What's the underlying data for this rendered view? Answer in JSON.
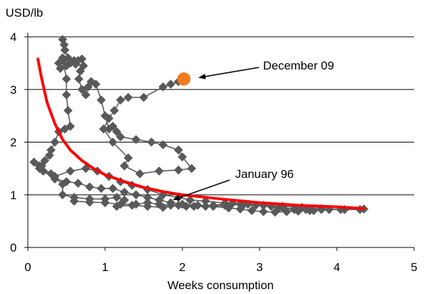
{
  "chart_data": {
    "type": "scatter",
    "title": "",
    "ylabel": "USD/lb",
    "xlabel": "Weeks consumption",
    "xlim": [
      0,
      5
    ],
    "ylim": [
      0,
      4
    ],
    "x_ticks": [
      "0",
      "1",
      "2",
      "3",
      "4",
      "5"
    ],
    "y_ticks": [
      "0",
      "1",
      "2",
      "3",
      "4"
    ],
    "grid": "horizontal",
    "series": [
      {
        "kind": "connected-scatter",
        "color": "#595959",
        "points": [
          [
            0.45,
            3.95
          ],
          [
            0.47,
            3.85
          ],
          [
            0.48,
            3.75
          ],
          [
            0.52,
            3.6
          ],
          [
            0.45,
            3.55
          ],
          [
            0.4,
            3.5
          ],
          [
            0.42,
            3.4
          ],
          [
            0.5,
            3.45
          ],
          [
            0.55,
            3.5
          ],
          [
            0.6,
            3.55
          ],
          [
            0.62,
            3.48
          ],
          [
            0.65,
            3.55
          ],
          [
            0.7,
            3.58
          ],
          [
            0.72,
            3.45
          ],
          [
            0.68,
            3.35
          ],
          [
            0.66,
            3.2
          ],
          [
            0.7,
            3.0
          ],
          [
            0.75,
            2.9
          ],
          [
            0.78,
            3.05
          ],
          [
            0.82,
            3.15
          ],
          [
            0.88,
            3.1
          ],
          [
            0.95,
            2.8
          ],
          [
            1.0,
            2.5
          ],
          [
            1.05,
            2.25
          ],
          [
            1.1,
            2.3
          ],
          [
            1.15,
            2.2
          ],
          [
            1.2,
            2.1
          ],
          [
            1.4,
            2.05
          ],
          [
            1.6,
            2.0
          ],
          [
            1.75,
            1.95
          ],
          [
            1.95,
            1.85
          ],
          [
            2.0,
            1.72
          ],
          [
            2.12,
            1.5
          ],
          [
            1.95,
            1.47
          ],
          [
            1.7,
            1.45
          ],
          [
            1.45,
            1.4
          ],
          [
            1.25,
            1.55
          ],
          [
            1.3,
            1.7
          ],
          [
            1.1,
            2.0
          ],
          [
            0.98,
            2.25
          ],
          [
            1.05,
            2.45
          ],
          [
            1.12,
            2.6
          ],
          [
            1.2,
            2.8
          ],
          [
            1.3,
            2.85
          ],
          [
            1.5,
            2.85
          ],
          [
            1.75,
            3.05
          ],
          [
            1.85,
            3.1
          ],
          [
            1.95,
            3.15
          ]
        ]
      },
      {
        "kind": "connected-scatter",
        "color": "#595959",
        "points": [
          [
            0.45,
            3.6
          ],
          [
            0.5,
            3.2
          ],
          [
            0.5,
            2.9
          ],
          [
            0.52,
            2.6
          ],
          [
            0.55,
            2.3
          ],
          [
            0.48,
            2.25
          ],
          [
            0.4,
            2.2
          ],
          [
            0.35,
            2.0
          ],
          [
            0.3,
            1.85
          ],
          [
            0.28,
            1.75
          ],
          [
            0.22,
            1.65
          ],
          [
            0.18,
            1.55
          ],
          [
            0.15,
            1.5
          ],
          [
            0.2,
            1.45
          ],
          [
            0.35,
            1.35
          ],
          [
            0.55,
            1.45
          ],
          [
            0.75,
            1.5
          ],
          [
            0.9,
            1.45
          ],
          [
            1.05,
            1.35
          ],
          [
            1.2,
            1.25
          ],
          [
            1.35,
            1.18
          ],
          [
            1.55,
            1.1
          ],
          [
            1.75,
            1.0
          ],
          [
            1.95,
            0.95
          ],
          [
            2.1,
            0.9
          ],
          [
            2.3,
            0.88
          ],
          [
            2.55,
            0.84
          ],
          [
            2.8,
            0.82
          ],
          [
            3.05,
            0.8
          ],
          [
            3.3,
            0.78
          ],
          [
            3.55,
            0.76
          ],
          [
            3.8,
            0.74
          ],
          [
            4.05,
            0.72
          ],
          [
            4.3,
            0.72
          ]
        ]
      },
      {
        "kind": "connected-scatter",
        "color": "#595959",
        "points": [
          [
            0.08,
            1.62
          ],
          [
            0.2,
            1.45
          ],
          [
            0.35,
            1.3
          ],
          [
            0.5,
            1.25
          ],
          [
            0.65,
            1.22
          ],
          [
            0.8,
            1.15
          ],
          [
            0.95,
            1.12
          ],
          [
            1.1,
            1.12
          ],
          [
            1.25,
            1.05
          ],
          [
            1.4,
            1.0
          ],
          [
            1.55,
            0.95
          ],
          [
            1.7,
            0.9
          ],
          [
            1.85,
            0.85
          ],
          [
            2.0,
            0.82
          ],
          [
            2.2,
            0.8
          ],
          [
            2.4,
            0.78
          ],
          [
            2.6,
            0.75
          ],
          [
            2.75,
            0.73
          ],
          [
            2.9,
            0.7
          ],
          [
            3.05,
            0.68
          ],
          [
            3.2,
            0.67
          ],
          [
            3.35,
            0.68
          ],
          [
            3.5,
            0.69
          ],
          [
            3.7,
            0.7
          ],
          [
            3.9,
            0.72
          ],
          [
            4.1,
            0.72
          ],
          [
            4.35,
            0.73
          ]
        ]
      },
      {
        "kind": "connected-scatter",
        "color": "#595959",
        "points": [
          [
            0.15,
            1.55
          ],
          [
            0.3,
            1.4
          ],
          [
            0.45,
            1.2
          ],
          [
            0.45,
            1.0
          ],
          [
            0.6,
            0.95
          ],
          [
            0.8,
            0.92
          ],
          [
            1.0,
            0.92
          ],
          [
            1.15,
            0.95
          ],
          [
            1.25,
            0.9
          ],
          [
            1.15,
            0.78
          ],
          [
            1.35,
            0.8
          ],
          [
            1.55,
            0.78
          ],
          [
            1.75,
            0.76
          ],
          [
            1.95,
            0.8
          ],
          [
            2.15,
            0.78
          ],
          [
            2.4,
            0.8
          ],
          [
            2.65,
            0.84
          ],
          [
            2.85,
            0.82
          ],
          [
            3.05,
            0.8
          ],
          [
            3.25,
            0.75
          ],
          [
            3.45,
            0.72
          ],
          [
            3.65,
            0.7
          ],
          [
            3.8,
            0.72
          ]
        ]
      },
      {
        "kind": "connected-scatter",
        "color": "#595959",
        "points": [
          [
            0.6,
            0.88
          ],
          [
            0.8,
            0.86
          ],
          [
            1.0,
            0.85
          ],
          [
            1.2,
            0.82
          ],
          [
            1.4,
            0.82
          ],
          [
            1.55,
            0.85
          ],
          [
            1.7,
            0.82
          ],
          [
            1.85,
            0.8
          ],
          [
            2.05,
            0.78
          ],
          [
            2.3,
            0.78
          ],
          [
            2.55,
            0.8
          ],
          [
            2.75,
            0.82
          ],
          [
            2.95,
            0.8
          ],
          [
            3.15,
            0.78
          ],
          [
            3.3,
            0.75
          ],
          [
            3.45,
            0.73
          ],
          [
            3.6,
            0.72
          ]
        ]
      },
      {
        "kind": "trend-curve",
        "color": "#ff0000",
        "points": [
          [
            0.13,
            3.58
          ],
          [
            0.18,
            3.2
          ],
          [
            0.25,
            2.75
          ],
          [
            0.35,
            2.35
          ],
          [
            0.45,
            2.05
          ],
          [
            0.55,
            1.85
          ],
          [
            0.7,
            1.65
          ],
          [
            0.85,
            1.5
          ],
          [
            1.0,
            1.38
          ],
          [
            1.25,
            1.25
          ],
          [
            1.5,
            1.14
          ],
          [
            1.75,
            1.06
          ],
          [
            2.0,
            1.0
          ],
          [
            2.5,
            0.92
          ],
          [
            3.0,
            0.85
          ],
          [
            3.5,
            0.8
          ],
          [
            4.0,
            0.77
          ],
          [
            4.35,
            0.74
          ]
        ]
      },
      {
        "kind": "highlight",
        "color": "#f07c1e",
        "points": [
          [
            2.02,
            3.2
          ]
        ]
      }
    ],
    "annotations": [
      {
        "text": "December 09",
        "at": [
          2.02,
          3.2
        ]
      },
      {
        "text": "January 96",
        "at": [
          1.85,
          0.88
        ]
      }
    ]
  }
}
